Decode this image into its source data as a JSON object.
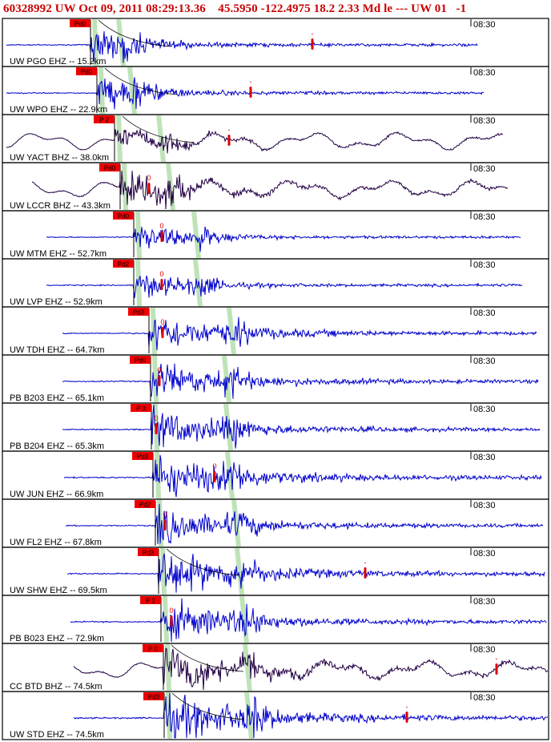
{
  "header": {
    "title": "60328992 UW Oct 09, 2011 08:29:13.36    45.5950 -122.4975 18.2 2.33 Md le --- UW 01   -1"
  },
  "colors": {
    "title": "#cc0000",
    "trace_short_period": "#0000cc",
    "trace_broadband": "#220044",
    "pick_flag": "#ee0000",
    "pick_text": "#000000",
    "phase_band": "#b8e0b0",
    "pick_marker": "#dd0000",
    "frame": "#000000"
  },
  "chart_data": {
    "type": "seismogram-record-section",
    "time_label": "08:30",
    "p_pick_label": "P",
    "pick_marker_label": "0",
    "stations": [
      {
        "label": "UW PGO EHZ -- 15.2km",
        "channel": "EHZ",
        "distance_km": 15.2,
        "pick_flag": "Pd0"
      },
      {
        "label": "UW WPO EHZ -- 22.9km",
        "channel": "EHZ",
        "distance_km": 22.9,
        "pick_flag": "Pd0"
      },
      {
        "label": "UW YACT BHZ -- 38.0km",
        "channel": "BHZ",
        "distance_km": 38.0,
        "pick_flag": "P 2"
      },
      {
        "label": "UW LCCR BHZ -- 43.3km",
        "channel": "BHZ",
        "distance_km": 43.3,
        "pick_flag": "Pd0"
      },
      {
        "label": "UW MTM EHZ -- 52.7km",
        "channel": "EHZ",
        "distance_km": 52.7,
        "pick_flag": "Pd0"
      },
      {
        "label": "UW LVP EHZ -- 52.9km",
        "channel": "EHZ",
        "distance_km": 52.9,
        "pick_flag": "Pd2"
      },
      {
        "label": "UW TDH EHZ -- 64.7km",
        "channel": "EHZ",
        "distance_km": 64.7,
        "pick_flag": "Pd3"
      },
      {
        "label": "PB B203 EHZ -- 65.1km",
        "channel": "EHZ",
        "distance_km": 65.1,
        "pick_flag": "Pd0"
      },
      {
        "label": "PB B204 EHZ -- 65.3km",
        "channel": "EHZ",
        "distance_km": 65.3,
        "pick_flag": "P 3"
      },
      {
        "label": "UW JUN EHZ -- 66.9km",
        "channel": "EHZ",
        "distance_km": 66.9,
        "pick_flag": "Pd3"
      },
      {
        "label": "UW FL2 EHZ -- 67.8km",
        "channel": "EHZ",
        "distance_km": 67.8,
        "pick_flag": "Pd2"
      },
      {
        "label": "UW SHW EHZ -- 69.5km",
        "channel": "EHZ",
        "distance_km": 69.5,
        "pick_flag": "Pd3"
      },
      {
        "label": "PB B023 EHZ -- 72.9km",
        "channel": "EHZ",
        "distance_km": 72.9,
        "pick_flag": "P 2"
      },
      {
        "label": "CC BTD BHZ -- 74.5km",
        "channel": "BHZ",
        "distance_km": 74.5,
        "pick_flag": "P 0"
      },
      {
        "label": "UW STD EHZ -- 74.5km",
        "channel": "EHZ",
        "distance_km": 74.5,
        "pick_flag": "Pd3"
      }
    ]
  }
}
